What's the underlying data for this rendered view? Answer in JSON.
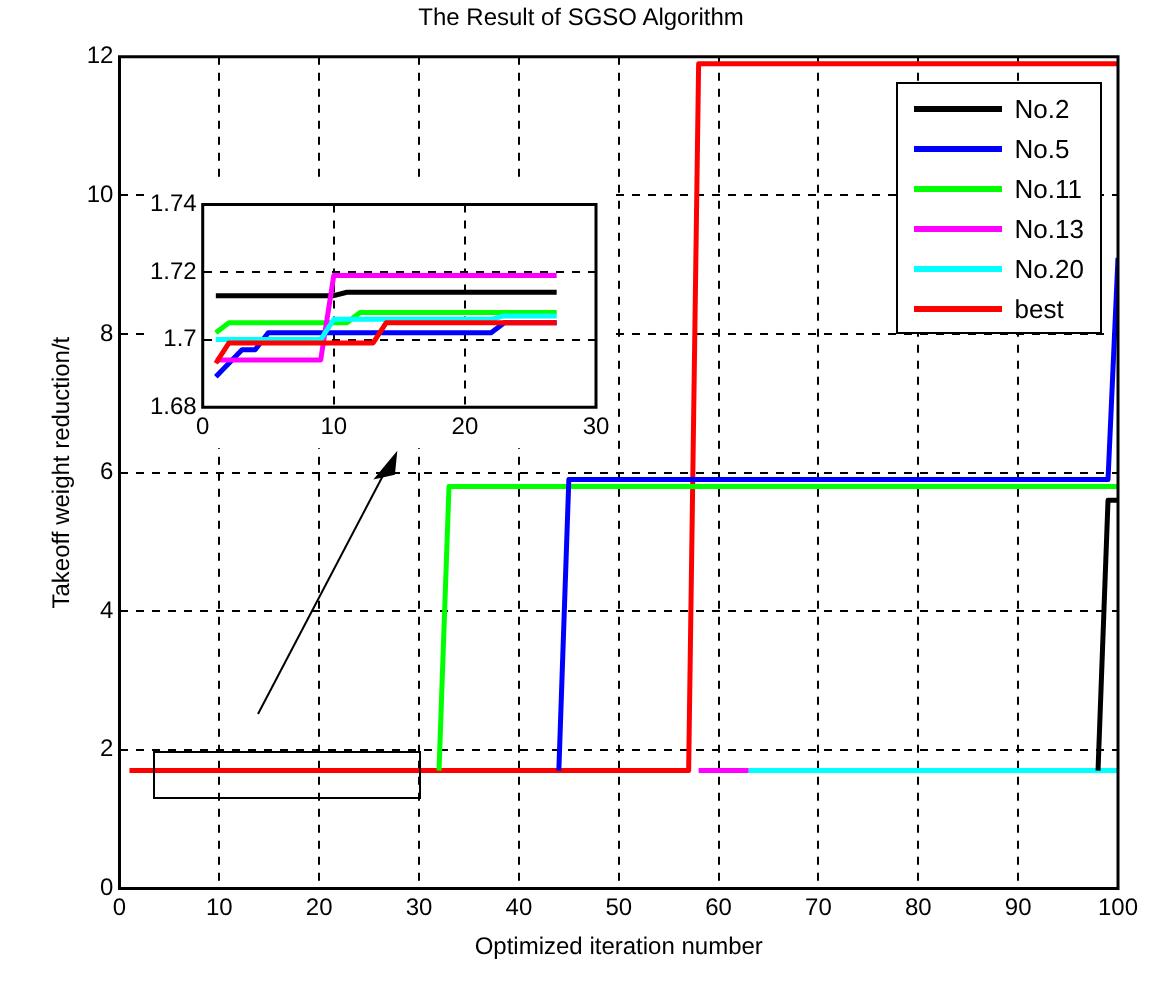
{
  "chart_data": [
    {
      "type": "line",
      "title": "The Result of SGSO Algorithm",
      "xlabel": "Optimized iteration number",
      "ylabel": "Takeoff weight reduction/t",
      "xlim": [
        0,
        100
      ],
      "ylim": [
        0,
        12
      ],
      "xticks": [
        0,
        10,
        20,
        30,
        40,
        50,
        60,
        70,
        80,
        90,
        100
      ],
      "yticks": [
        0,
        2,
        4,
        6,
        8,
        10,
        12
      ],
      "grid": true,
      "legend": "top right",
      "series": [
        {
          "name": "No.2",
          "color": "#000000",
          "x": [
            98,
            99,
            100
          ],
          "values": [
            1.7,
            5.6,
            5.6
          ]
        },
        {
          "name": "No.5",
          "color": "#0000ff",
          "x": [
            44,
            45,
            99,
            100
          ],
          "values": [
            1.7,
            5.9,
            5.9,
            9.1
          ]
        },
        {
          "name": "No.11",
          "color": "#00ff00",
          "x": [
            32,
            33,
            100
          ],
          "values": [
            1.7,
            5.8,
            5.8
          ]
        },
        {
          "name": "No.13",
          "color": "#ff00ff",
          "x": [
            58,
            63
          ],
          "values": [
            1.7,
            1.7
          ]
        },
        {
          "name": "No.20",
          "color": "#00ffff",
          "x": [
            63,
            100
          ],
          "values": [
            1.7,
            1.7
          ]
        },
        {
          "name": "best",
          "color": "#ff0000",
          "x": [
            1,
            57,
            58,
            100
          ],
          "values": [
            1.7,
            1.7,
            11.9,
            11.9
          ]
        }
      ]
    },
    {
      "type": "line",
      "xlim": [
        0,
        30
      ],
      "ylim": [
        1.68,
        1.74
      ],
      "xticks": [
        0,
        10,
        20,
        30
      ],
      "yticks": [
        1.68,
        1.7,
        1.72,
        1.74
      ],
      "grid": true,
      "series": [
        {
          "color": "#000000",
          "x": [
            1,
            10,
            11,
            27
          ],
          "values": [
            1.713,
            1.713,
            1.714,
            1.714
          ]
        },
        {
          "color": "#0000ff",
          "x": [
            1,
            3,
            4,
            5,
            22,
            23,
            27
          ],
          "values": [
            1.689,
            1.697,
            1.697,
            1.702,
            1.702,
            1.705,
            1.705
          ]
        },
        {
          "color": "#00ff00",
          "x": [
            1,
            2,
            11,
            12,
            27
          ],
          "values": [
            1.702,
            1.705,
            1.705,
            1.708,
            1.708
          ]
        },
        {
          "color": "#ff00ff",
          "x": [
            1,
            9,
            10,
            27
          ],
          "values": [
            1.694,
            1.694,
            1.719,
            1.719
          ]
        },
        {
          "color": "#00ffff",
          "x": [
            1,
            9,
            10,
            22,
            23,
            27
          ],
          "values": [
            1.7,
            1.7,
            1.706,
            1.706,
            1.707,
            1.707
          ]
        },
        {
          "color": "#ff0000",
          "x": [
            1,
            2,
            13,
            14,
            27
          ],
          "values": [
            1.693,
            1.699,
            1.699,
            1.705,
            1.705
          ]
        }
      ]
    }
  ]
}
